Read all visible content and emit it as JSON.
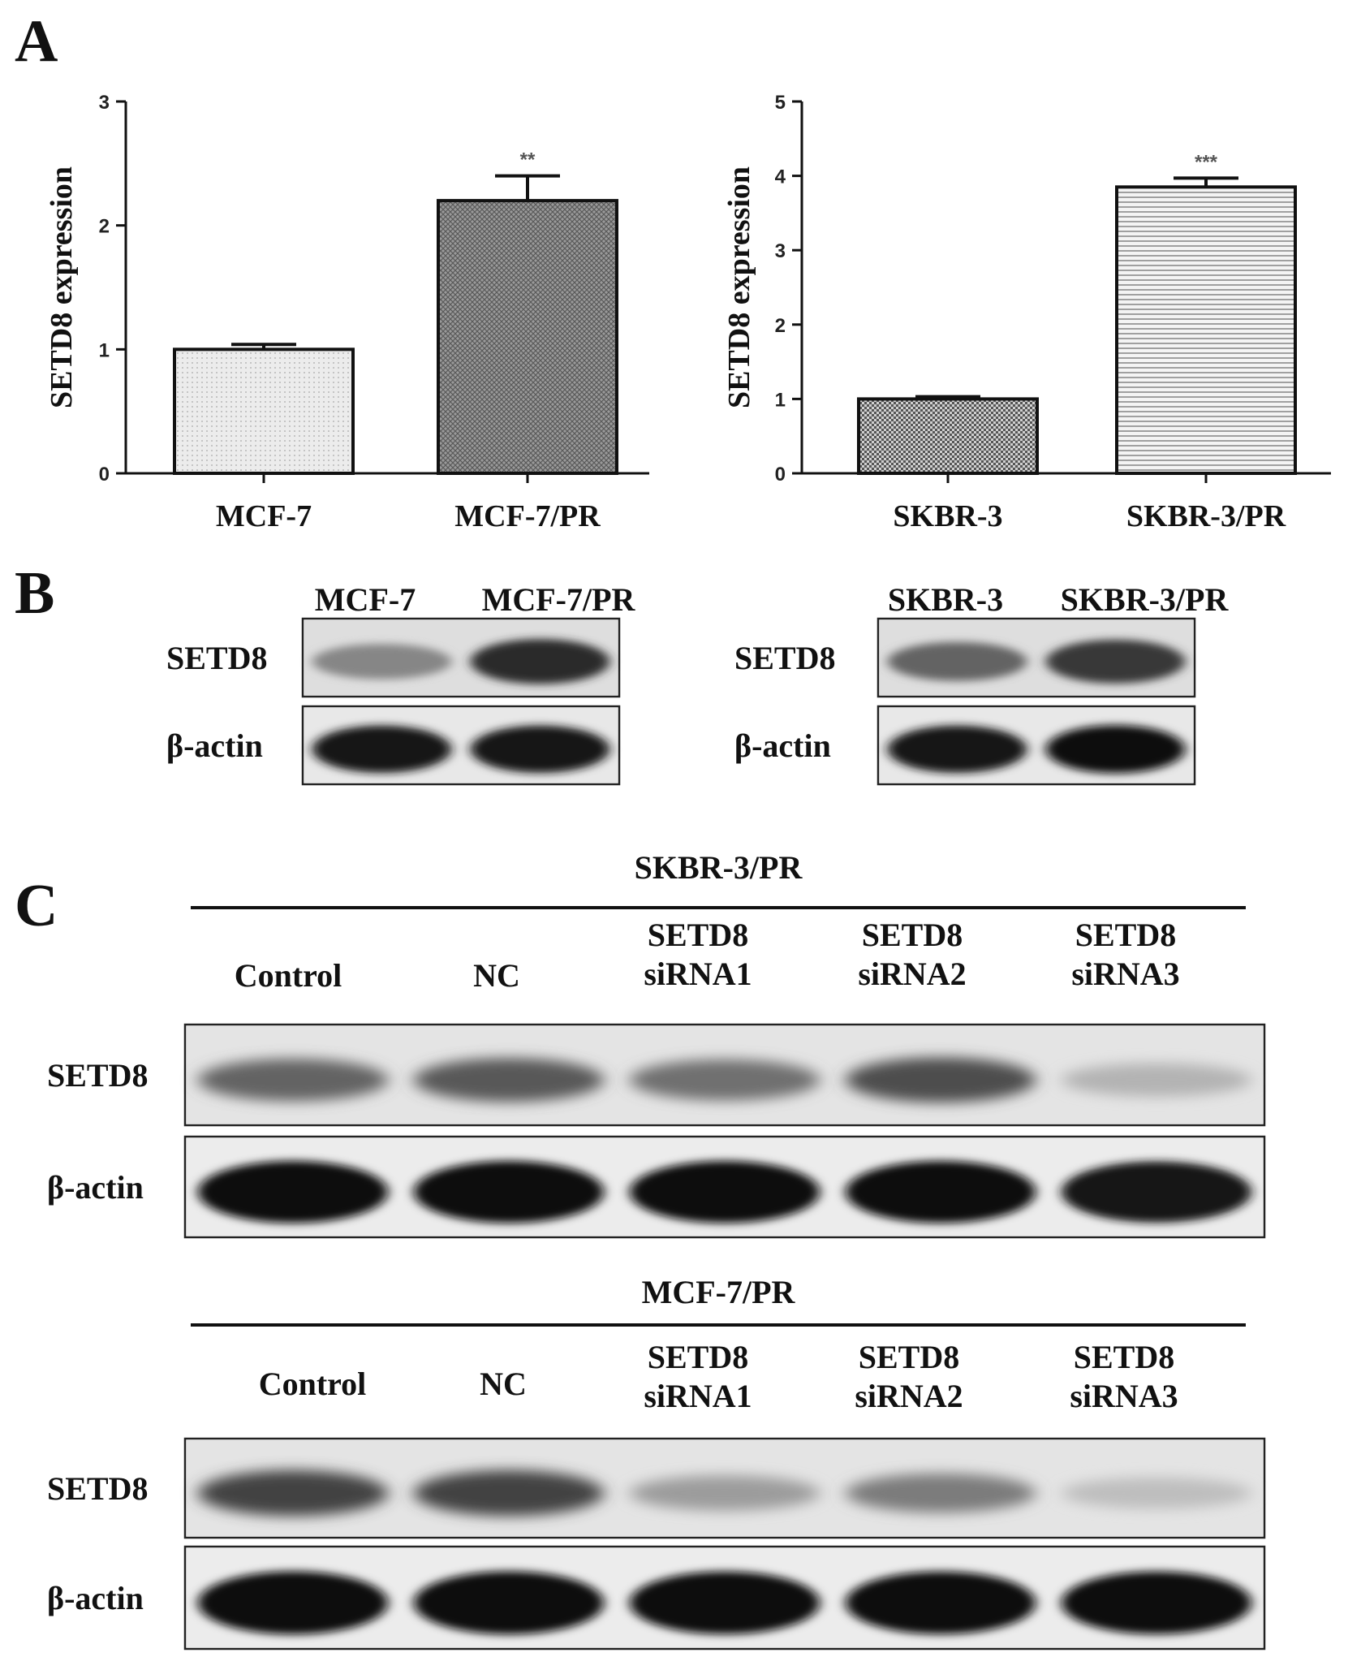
{
  "panel_labels": [
    "A",
    "B",
    "C"
  ],
  "chart_data": [
    {
      "type": "bar",
      "ylabel": "SETD8  expression",
      "categories": [
        "MCF-7",
        "MCF-7/PR"
      ],
      "values": [
        1.0,
        2.2
      ],
      "errors": [
        0.04,
        0.2
      ],
      "significance": [
        "",
        "**"
      ],
      "ylim": [
        0,
        3
      ],
      "yticks": [
        0,
        1,
        2,
        3
      ],
      "fills": [
        "dots-light",
        "crosshatch-dark"
      ]
    },
    {
      "type": "bar",
      "ylabel": "SETD8  expression",
      "categories": [
        "SKBR-3",
        "SKBR-3/PR"
      ],
      "values": [
        1.0,
        3.85
      ],
      "errors": [
        0.03,
        0.12
      ],
      "significance": [
        "",
        "***"
      ],
      "ylim": [
        0,
        5
      ],
      "yticks": [
        0,
        1,
        2,
        3,
        4,
        5
      ],
      "fills": [
        "checker-dark",
        "horizontal-lines"
      ]
    }
  ],
  "blots_b": [
    {
      "lanes": [
        "MCF-7",
        "MCF-7/PR"
      ],
      "rows": [
        {
          "label": "SETD8",
          "intensities": [
            0.45,
            0.85
          ]
        },
        {
          "label": "β-actin",
          "intensities": [
            0.95,
            0.95
          ]
        }
      ]
    },
    {
      "lanes": [
        "SKBR-3",
        "SKBR-3/PR"
      ],
      "rows": [
        {
          "label": "SETD8",
          "intensities": [
            0.6,
            0.8
          ]
        },
        {
          "label": "β-actin",
          "intensities": [
            0.95,
            0.98
          ]
        }
      ]
    }
  ],
  "blots_c": [
    {
      "cell_line": "SKBR-3/PR",
      "lanes": [
        [
          "Control"
        ],
        [
          "NC"
        ],
        [
          "SETD8",
          "siRNA1"
        ],
        [
          "SETD8",
          "siRNA2"
        ],
        [
          "SETD8",
          "siRNA3"
        ]
      ],
      "rows": [
        {
          "label": "SETD8",
          "intensities": [
            0.6,
            0.65,
            0.55,
            0.7,
            0.25
          ]
        },
        {
          "label": "β-actin",
          "intensities": [
            0.98,
            0.98,
            0.98,
            0.98,
            0.95
          ]
        }
      ]
    },
    {
      "cell_line": "MCF-7/PR",
      "lanes": [
        [
          "Control"
        ],
        [
          "NC"
        ],
        [
          "SETD8",
          "siRNA1"
        ],
        [
          "SETD8",
          "siRNA2"
        ],
        [
          "SETD8",
          "siRNA3"
        ]
      ],
      "rows": [
        {
          "label": "SETD8",
          "intensities": [
            0.75,
            0.75,
            0.35,
            0.5,
            0.2
          ]
        },
        {
          "label": "β-actin",
          "intensities": [
            0.98,
            0.98,
            0.97,
            0.97,
            0.97
          ]
        }
      ]
    }
  ]
}
